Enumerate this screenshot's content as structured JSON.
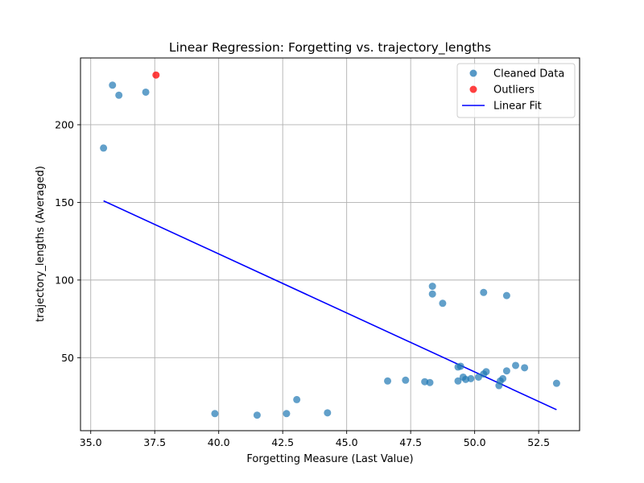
{
  "chart_data": {
    "type": "scatter",
    "title": "Linear Regression: Forgetting vs. trajectory_lengths",
    "xlabel": "Forgetting Measure (Last Value)",
    "ylabel": "trajectory_lengths (Averaged)",
    "xlim": [
      34.6,
      54.1
    ],
    "ylim": [
      3,
      243
    ],
    "xticks": [
      "35.0",
      "37.5",
      "40.0",
      "42.5",
      "45.0",
      "47.5",
      "50.0",
      "52.5"
    ],
    "yticks": [
      "50",
      "100",
      "150",
      "200"
    ],
    "grid": true,
    "legend_position": "top-right",
    "legend": [
      {
        "label": "Cleaned Data",
        "kind": "point",
        "color": "#1f77b4"
      },
      {
        "label": "Outliers",
        "kind": "point",
        "color": "#ff0000"
      },
      {
        "label": "Linear Fit",
        "kind": "line",
        "color": "#0000ff"
      }
    ],
    "series": [
      {
        "name": "Cleaned Data",
        "color": "#1f77b4",
        "points": [
          [
            35.5,
            185
          ],
          [
            35.85,
            225.5
          ],
          [
            36.1,
            219
          ],
          [
            37.15,
            221
          ],
          [
            39.85,
            14
          ],
          [
            41.5,
            13
          ],
          [
            42.65,
            14
          ],
          [
            43.05,
            23
          ],
          [
            44.25,
            14.5
          ],
          [
            46.6,
            35
          ],
          [
            47.3,
            35.5
          ],
          [
            48.05,
            34.5
          ],
          [
            48.25,
            34
          ],
          [
            48.35,
            96
          ],
          [
            48.35,
            91
          ],
          [
            48.75,
            85
          ],
          [
            49.35,
            44
          ],
          [
            49.45,
            44.5
          ],
          [
            49.35,
            35
          ],
          [
            49.55,
            37.5
          ],
          [
            49.65,
            36
          ],
          [
            49.85,
            36.5
          ],
          [
            50.15,
            37.5
          ],
          [
            50.35,
            92
          ],
          [
            50.35,
            39.5
          ],
          [
            50.45,
            41
          ],
          [
            50.95,
            32
          ],
          [
            51.0,
            35
          ],
          [
            51.1,
            36.5
          ],
          [
            51.25,
            90
          ],
          [
            51.25,
            41.5
          ],
          [
            51.6,
            45
          ],
          [
            51.95,
            43.5
          ],
          [
            53.2,
            33.5
          ]
        ]
      },
      {
        "name": "Outliers",
        "color": "#ff0000",
        "points": [
          [
            37.55,
            232
          ]
        ]
      }
    ],
    "fit_line": {
      "name": "Linear Fit",
      "color": "#0000ff",
      "x": [
        35.5,
        53.2
      ],
      "y": [
        151,
        16.5
      ]
    }
  }
}
